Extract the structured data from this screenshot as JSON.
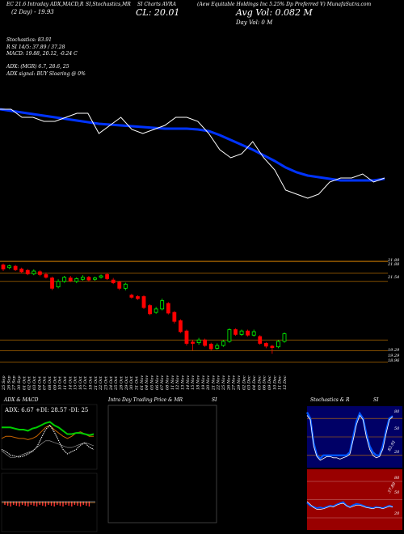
{
  "header": {
    "line1_left": "EC 21.6 Intraday ADX,MACD,R",
    "line1_mid": "SI,Stochastics,MR",
    "line1_mid2": "SI Charts AVRA",
    "line1_right": "(Aew Equitable Holdings Inc 5.25% Dp Preferred V) MunafaSutra.com",
    "line2_left": "(2 Day) - 19.93",
    "line2_mid": "CL: 20.01",
    "line2_right": "Avg Vol: 0.082  M",
    "line3_right": "Day Vol: 0   M"
  },
  "indicators": {
    "stoch": "Stochastics: 83.91",
    "rsi": "R                SI 14/5: 37.89 / 37.28",
    "macd": "MACD: 19.88, 20.12, -0.24  C",
    "adx": "ADX:                         (MGR) 6.7, 28.6, 25",
    "adx_signal": "ADX  signal:                          BUY Sloaring @ 0%"
  },
  "price_labels": {
    "p1": "21.89",
    "p2": "21.88",
    "p3": "21.54",
    "p4": "19.29",
    "p5": "19.29",
    "p6": "18.96"
  },
  "dates": [
    "25 Sep",
    "26 Sep",
    "27 Sep",
    "30 Sep",
    "01 Oct",
    "02 Oct",
    "03 Oct",
    "04 Oct",
    "07 Oct",
    "08 Oct",
    "09 Oct",
    "10 Oct",
    "11 Oct",
    "14 Oct",
    "15 Oct",
    "16 Oct",
    "17 Oct",
    "18 Oct",
    "21 Oct",
    "22 Oct",
    "23 Oct",
    "24 Oct",
    "25 Oct",
    "28 Oct",
    "29 Oct",
    "30 Oct",
    "31 Oct",
    "01 Nov",
    "04 Nov",
    "05 Nov",
    "06 Nov",
    "07 Nov",
    "08 Nov",
    "11 Nov",
    "12 Nov",
    "13 Nov",
    "14 Nov",
    "15 Nov",
    "18 Nov",
    "19 Nov",
    "20 Nov",
    "21 Nov",
    "22 Nov",
    "25 Nov",
    "26 Nov",
    "27 Nov",
    "29 Nov",
    "02 Dec",
    "03 Dec",
    "04 Dec",
    "05 Dec",
    "06 Dec",
    "09 Dec",
    "10 Dec",
    "11 Dec",
    "12 Dec"
  ],
  "panels": {
    "adx_title": "ADX  & MACD",
    "adx_values": "ADX: 6.67  +DI: 28.57  -DI: 25",
    "intraday_title": "Intra  Day Trading Price  & MR",
    "intraday_title2": "SI",
    "stoch_title": "Stochastics & R",
    "stoch_title2": "SI",
    "stoch_ticks": [
      "80",
      "50",
      "20"
    ],
    "rsi_ticks": [
      "80",
      "50",
      "20"
    ],
    "stoch_label": "83.91",
    "rsi_label": "37.89"
  },
  "colors": {
    "up": "#00ff00",
    "down": "#ff0000",
    "ma": "#0033ff",
    "price": "#ffffff",
    "grid_orange": "#cc7a00",
    "rsi_bg": "#990000",
    "stoch_bg": "#000066"
  },
  "chart_data": {
    "type": "line",
    "title": "",
    "top_chart": {
      "price_close": [
        20.6,
        20.6,
        20.5,
        20.5,
        20.45,
        20.45,
        20.5,
        20.55,
        20.55,
        20.3,
        20.4,
        20.5,
        20.35,
        20.3,
        20.35,
        20.4,
        20.5,
        20.5,
        20.45,
        20.3,
        20.1,
        20.0,
        20.05,
        20.2,
        20.0,
        19.85,
        19.6,
        19.55,
        19.5,
        19.55,
        19.7,
        19.75,
        19.75,
        19.8,
        19.7,
        19.75
      ],
      "ma": [
        20.6,
        20.58,
        20.56,
        20.54,
        20.52,
        20.5,
        20.48,
        20.46,
        20.44,
        20.42,
        20.41,
        20.4,
        20.39,
        20.38,
        20.37,
        20.36,
        20.36,
        20.36,
        20.35,
        20.33,
        20.28,
        20.22,
        20.16,
        20.1,
        20.03,
        19.96,
        19.88,
        19.82,
        19.78,
        19.76,
        19.74,
        19.72,
        19.72,
        19.72,
        19.72,
        19.74
      ]
    },
    "candles": {
      "ylim": [
        18.9,
        22.0
      ],
      "series": [
        {
          "o": 21.78,
          "c": 21.66,
          "h": 21.82,
          "l": 21.6
        },
        {
          "o": 21.7,
          "c": 21.75,
          "h": 21.78,
          "l": 21.66
        },
        {
          "o": 21.74,
          "c": 21.64,
          "h": 21.78,
          "l": 21.6
        },
        {
          "o": 21.66,
          "c": 21.58,
          "h": 21.7,
          "l": 21.54
        },
        {
          "o": 21.62,
          "c": 21.52,
          "h": 21.66,
          "l": 21.48
        },
        {
          "o": 21.52,
          "c": 21.6,
          "h": 21.65,
          "l": 21.48
        },
        {
          "o": 21.58,
          "c": 21.5,
          "h": 21.62,
          "l": 21.45
        },
        {
          "o": 21.5,
          "c": 21.42,
          "h": 21.56,
          "l": 21.38
        },
        {
          "o": 21.4,
          "c": 21.1,
          "h": 21.44,
          "l": 21.05
        },
        {
          "o": 21.14,
          "c": 21.3,
          "h": 21.36,
          "l": 21.1
        },
        {
          "o": 21.3,
          "c": 21.42,
          "h": 21.46,
          "l": 21.26
        },
        {
          "o": 21.4,
          "c": 21.32,
          "h": 21.46,
          "l": 21.28
        },
        {
          "o": 21.3,
          "c": 21.38,
          "h": 21.42,
          "l": 21.25
        },
        {
          "o": 21.36,
          "c": 21.42,
          "h": 21.48,
          "l": 21.32
        },
        {
          "o": 21.42,
          "c": 21.34,
          "h": 21.46,
          "l": 21.3
        },
        {
          "o": 21.36,
          "c": 21.4,
          "h": 21.44,
          "l": 21.32
        },
        {
          "o": 21.42,
          "c": 21.46,
          "h": 21.5,
          "l": 21.38
        },
        {
          "o": 21.5,
          "c": 21.38,
          "h": 21.54,
          "l": 21.34
        },
        {
          "o": 21.34,
          "c": 21.26,
          "h": 21.4,
          "l": 21.22
        },
        {
          "o": 21.28,
          "c": 21.1,
          "h": 21.32,
          "l": 21.05
        },
        {
          "o": 21.1,
          "c": 21.22,
          "h": 21.26,
          "l": 21.04
        },
        {
          "o": 20.9,
          "c": 20.84,
          "h": 20.94,
          "l": 20.8
        },
        {
          "o": 20.86,
          "c": 20.8,
          "h": 20.9,
          "l": 20.76
        },
        {
          "o": 20.86,
          "c": 20.54,
          "h": 20.9,
          "l": 20.5
        },
        {
          "o": 20.6,
          "c": 20.36,
          "h": 20.64,
          "l": 20.32
        },
        {
          "o": 20.4,
          "c": 20.5,
          "h": 20.56,
          "l": 20.36
        },
        {
          "o": 20.5,
          "c": 20.74,
          "h": 20.8,
          "l": 20.46
        },
        {
          "o": 20.66,
          "c": 20.38,
          "h": 20.7,
          "l": 20.34
        },
        {
          "o": 20.4,
          "c": 20.14,
          "h": 20.44,
          "l": 20.08
        },
        {
          "o": 20.16,
          "c": 19.84,
          "h": 20.2,
          "l": 19.8
        },
        {
          "o": 19.86,
          "c": 19.5,
          "h": 19.9,
          "l": 19.44
        },
        {
          "o": 19.54,
          "c": 19.5,
          "h": 19.6,
          "l": 19.3
        },
        {
          "o": 19.52,
          "c": 19.6,
          "h": 19.66,
          "l": 19.46
        },
        {
          "o": 19.6,
          "c": 19.44,
          "h": 19.64,
          "l": 19.4
        },
        {
          "o": 19.48,
          "c": 19.34,
          "h": 19.52,
          "l": 19.3
        },
        {
          "o": 19.36,
          "c": 19.44,
          "h": 19.5,
          "l": 19.32
        },
        {
          "o": 19.44,
          "c": 19.56,
          "h": 19.6,
          "l": 19.4
        },
        {
          "o": 19.56,
          "c": 19.9,
          "h": 19.94,
          "l": 19.52
        },
        {
          "o": 19.9,
          "c": 19.76,
          "h": 19.94,
          "l": 19.72
        },
        {
          "o": 19.76,
          "c": 19.86,
          "h": 19.9,
          "l": 19.72
        },
        {
          "o": 19.86,
          "c": 19.74,
          "h": 19.9,
          "l": 19.7
        },
        {
          "o": 19.74,
          "c": 19.84,
          "h": 19.9,
          "l": 19.7
        },
        {
          "o": 19.7,
          "c": 19.5,
          "h": 19.74,
          "l": 19.46
        },
        {
          "o": 19.5,
          "c": 19.42,
          "h": 19.54,
          "l": 19.36
        },
        {
          "o": 19.42,
          "c": 19.38,
          "h": 19.46,
          "l": 19.2
        },
        {
          "o": 19.4,
          "c": 19.56,
          "h": 19.6,
          "l": 19.36
        },
        {
          "o": 19.56,
          "c": 19.78,
          "h": 19.82,
          "l": 19.52
        }
      ]
    },
    "adx_panel": {
      "adx_green": [
        38,
        38,
        38,
        37,
        36,
        36,
        35,
        37,
        38,
        40,
        42,
        43,
        40,
        38,
        35,
        32,
        32,
        33,
        33,
        32,
        31,
        32
      ],
      "di_white": [
        18,
        16,
        13,
        12,
        11,
        12,
        14,
        16,
        20,
        28,
        36,
        40,
        34,
        26,
        18,
        14,
        16,
        18,
        22,
        24,
        20,
        18
      ],
      "di_orange": [
        28,
        30,
        30,
        29,
        28,
        28,
        27,
        28,
        30,
        34,
        38,
        40,
        36,
        33,
        30,
        28,
        30,
        33,
        34,
        32,
        30,
        30
      ],
      "macd_white": [
        12,
        10,
        8,
        8,
        9,
        10,
        11,
        12,
        14,
        16,
        18,
        18,
        17,
        16,
        15,
        14,
        14,
        15,
        16,
        17,
        16,
        15
      ]
    },
    "stoch_panel": {
      "ticks": [
        "80",
        "50",
        "20"
      ],
      "blue": [
        90,
        80,
        40,
        20,
        15,
        20,
        20,
        20,
        20,
        20,
        20,
        20,
        20,
        25,
        50,
        75,
        88,
        80,
        55,
        35,
        25,
        20,
        20,
        35,
        60,
        80,
        84
      ],
      "white": [
        85,
        78,
        35,
        18,
        12,
        15,
        18,
        18,
        16,
        16,
        14,
        16,
        18,
        22,
        45,
        70,
        85,
        78,
        50,
        30,
        20,
        16,
        18,
        30,
        55,
        78,
        83
      ]
    },
    "rsi_panel": {
      "ticks": [
        "80",
        "50",
        "20"
      ],
      "blue": [
        45,
        40,
        38,
        36,
        37,
        36,
        38,
        40,
        39,
        42,
        44,
        46,
        40,
        38,
        41,
        43,
        42,
        40,
        38,
        37,
        36,
        38,
        37,
        36,
        38,
        40,
        38
      ],
      "white": [
        47,
        42,
        37,
        34,
        34,
        35,
        37,
        39,
        38,
        41,
        43,
        44,
        40,
        37,
        39,
        41,
        41,
        39,
        37,
        36,
        35,
        37,
        37,
        35,
        37,
        39,
        38
      ]
    }
  }
}
